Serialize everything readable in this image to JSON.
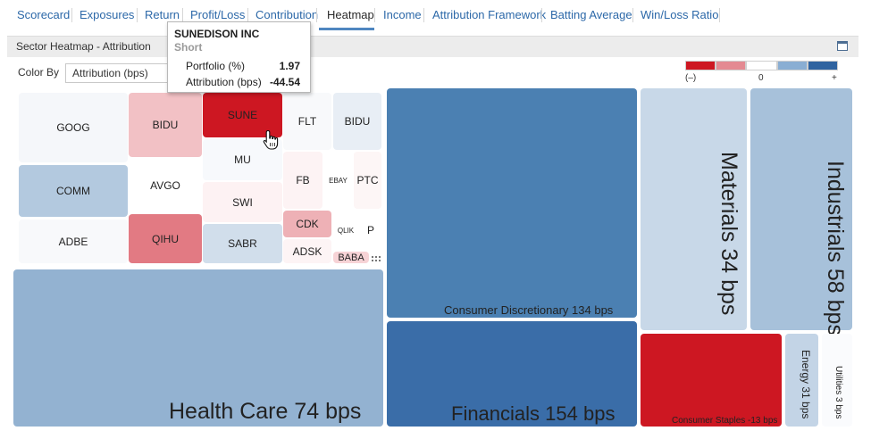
{
  "tabs": [
    {
      "label": "Scorecard"
    },
    {
      "label": "Exposures"
    },
    {
      "label": "Return"
    },
    {
      "label": "Profit/Loss"
    },
    {
      "label": "Contribution"
    },
    {
      "label": "Heatmap",
      "active": true
    },
    {
      "label": "Income"
    },
    {
      "label": "Attribution Framework"
    },
    {
      "label": "Batting Average"
    },
    {
      "label": "Win/Loss Ratio"
    }
  ],
  "panel": {
    "title": "Sector Heatmap - Attribution"
  },
  "color_by": {
    "label": "Color By",
    "value": "Attribution (bps)"
  },
  "legend": {
    "colors": [
      "#cd1722",
      "#e48a92",
      "#ffffff",
      "#8aaed3",
      "#2f63a0"
    ],
    "negative_label": "(–)",
    "zero_label": "0",
    "positive_label": "+"
  },
  "tooltip": {
    "title": "SUNEDISON INC",
    "subtitle": "Short",
    "rows": [
      {
        "label": "Portfolio (%)",
        "value": "1.97"
      },
      {
        "label": "Attribution (bps)",
        "value": "-44.54"
      }
    ]
  },
  "stocks": {
    "goog": "GOOG",
    "comm": "COMM",
    "adbe": "ADBE",
    "bidu": "BIDU",
    "avgo": "AVGO",
    "qihu": "QIHU",
    "sune": "SUNE",
    "mu": "MU",
    "swi": "SWI",
    "sabr": "SABR",
    "flt": "FLT",
    "bidu2": "BIDU",
    "fb": "FB",
    "ebay": "EBAY",
    "ptc": "PTC",
    "cdk": "CDK",
    "adsk": "ADSK",
    "qlik": "QLIK",
    "p": "P",
    "baba": "BABA"
  },
  "sectors": {
    "health_care": "Health Care 74 bps",
    "consumer_discretionary": "Consumer Discretionary 134 bps",
    "financials": "Financials 154 bps",
    "materials": "Materials 34 bps",
    "industrials": "Industrials 58 bps",
    "consumer_staples": "Consumer Staples -13 bps",
    "energy": "Energy 31 bps",
    "utilities": "Utilities 3 bps"
  },
  "icons": {
    "cursor": "hand-pointer-icon",
    "restore": "window-restore-icon",
    "resize": "resize-grip-icon"
  }
}
